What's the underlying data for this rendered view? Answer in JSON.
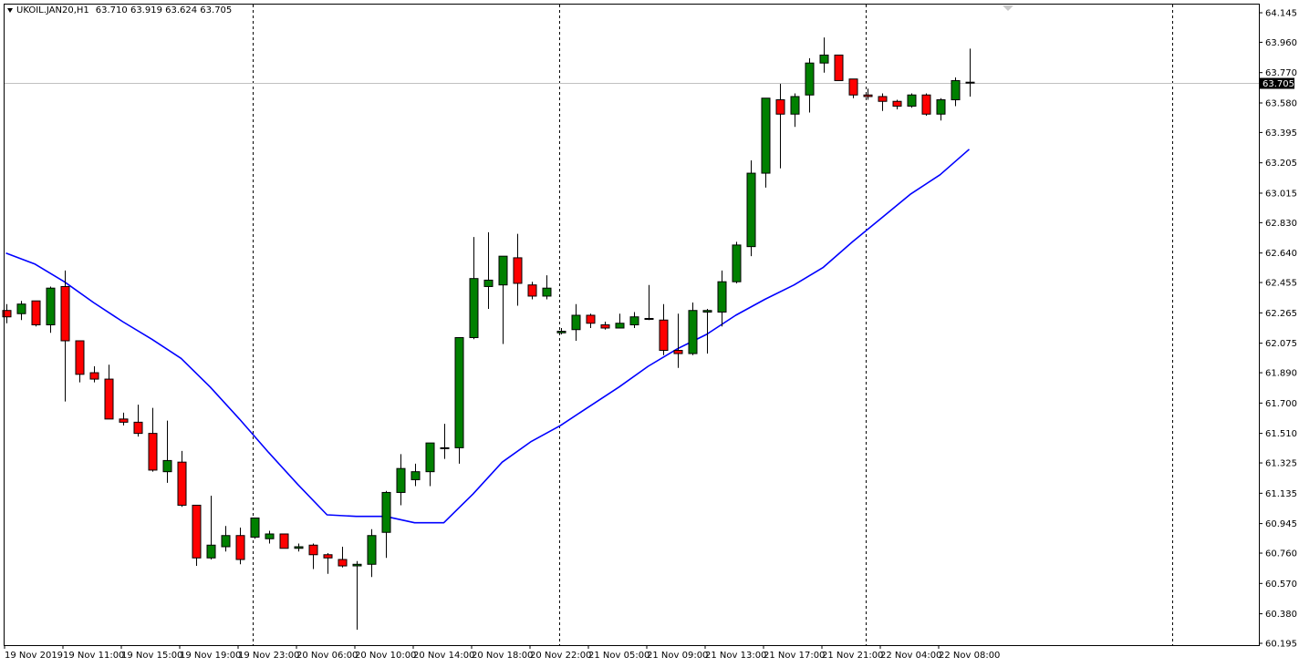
{
  "header": {
    "symbol": "UKOIL.JAN20,H1",
    "ohlc": "63.710 63.919 63.624 63.705"
  },
  "colors": {
    "bull": "#008000",
    "bear": "#ff0000",
    "ma_line": "#0000ff",
    "grid_separator": "#000000",
    "bid_line": "#c0c0c0",
    "price_tag_bg": "#000000",
    "price_tag_text": "#ffffff"
  },
  "price_axis": {
    "ticks": [
      "64.145",
      "63.960",
      "63.770",
      "63.580",
      "63.395",
      "63.205",
      "63.015",
      "62.830",
      "62.640",
      "62.455",
      "62.265",
      "62.075",
      "61.890",
      "61.700",
      "61.510",
      "61.325",
      "61.135",
      "60.945",
      "60.760",
      "60.570",
      "60.380",
      "60.195"
    ],
    "current_price": "63.705"
  },
  "time_axis": {
    "labels": [
      "19 Nov 2019",
      "19 Nov 11:00",
      "19 Nov 15:00",
      "19 Nov 19:00",
      "19 Nov 23:00",
      "20 Nov 06:00",
      "20 Nov 10:00",
      "20 Nov 14:00",
      "20 Nov 18:00",
      "20 Nov 22:00",
      "21 Nov 05:00",
      "21 Nov 09:00",
      "21 Nov 13:00",
      "21 Nov 17:00",
      "21 Nov 21:00",
      "22 Nov 04:00",
      "22 Nov 08:00"
    ]
  },
  "chart_data": {
    "type": "candlestick",
    "symbol": "UKOIL.JAN20",
    "timeframe": "H1",
    "ylim": [
      60.195,
      64.145
    ],
    "candles": [
      {
        "o": 62.28,
        "h": 62.32,
        "l": 62.2,
        "c": 62.24
      },
      {
        "o": 62.26,
        "h": 62.34,
        "l": 62.22,
        "c": 62.32
      },
      {
        "o": 62.34,
        "h": 62.34,
        "l": 62.18,
        "c": 62.19
      },
      {
        "o": 62.19,
        "h": 62.43,
        "l": 62.14,
        "c": 62.42
      },
      {
        "o": 62.43,
        "h": 62.53,
        "l": 61.71,
        "c": 62.09
      },
      {
        "o": 62.09,
        "h": 62.09,
        "l": 61.83,
        "c": 61.88
      },
      {
        "o": 61.89,
        "h": 61.93,
        "l": 61.83,
        "c": 61.85
      },
      {
        "o": 61.85,
        "h": 61.94,
        "l": 61.6,
        "c": 61.6
      },
      {
        "o": 61.6,
        "h": 61.64,
        "l": 61.56,
        "c": 61.58
      },
      {
        "o": 61.58,
        "h": 61.69,
        "l": 61.49,
        "c": 61.51
      },
      {
        "o": 61.51,
        "h": 61.67,
        "l": 61.27,
        "c": 61.28
      },
      {
        "o": 61.27,
        "h": 61.59,
        "l": 61.2,
        "c": 61.34
      },
      {
        "o": 61.33,
        "h": 61.4,
        "l": 61.05,
        "c": 61.06
      },
      {
        "o": 61.06,
        "h": 61.06,
        "l": 60.68,
        "c": 60.73
      },
      {
        "o": 60.73,
        "h": 61.12,
        "l": 60.72,
        "c": 60.81
      },
      {
        "o": 60.8,
        "h": 60.93,
        "l": 60.77,
        "c": 60.87
      },
      {
        "o": 60.87,
        "h": 60.92,
        "l": 60.69,
        "c": 60.72
      },
      {
        "o": 60.86,
        "h": 60.98,
        "l": 60.85,
        "c": 60.98
      },
      {
        "o": 60.85,
        "h": 60.9,
        "l": 60.82,
        "c": 60.88
      },
      {
        "o": 60.88,
        "h": 60.88,
        "l": 60.79,
        "c": 60.79
      },
      {
        "o": 60.79,
        "h": 60.82,
        "l": 60.77,
        "c": 60.8
      },
      {
        "o": 60.81,
        "h": 60.82,
        "l": 60.66,
        "c": 60.75
      },
      {
        "o": 60.75,
        "h": 60.76,
        "l": 60.63,
        "c": 60.73
      },
      {
        "o": 60.72,
        "h": 60.8,
        "l": 60.67,
        "c": 60.68
      },
      {
        "o": 60.68,
        "h": 60.71,
        "l": 60.28,
        "c": 60.69
      },
      {
        "o": 60.69,
        "h": 60.91,
        "l": 60.61,
        "c": 60.87
      },
      {
        "o": 60.89,
        "h": 61.15,
        "l": 60.73,
        "c": 61.14
      },
      {
        "o": 61.14,
        "h": 61.38,
        "l": 61.06,
        "c": 61.29
      },
      {
        "o": 61.22,
        "h": 61.32,
        "l": 61.18,
        "c": 61.27
      },
      {
        "o": 61.27,
        "h": 61.44,
        "l": 61.18,
        "c": 61.45
      },
      {
        "o": 61.42,
        "h": 61.57,
        "l": 61.35,
        "c": 61.42
      },
      {
        "o": 61.42,
        "h": 62.11,
        "l": 61.32,
        "c": 62.11
      },
      {
        "o": 62.11,
        "h": 62.74,
        "l": 62.1,
        "c": 62.48
      },
      {
        "o": 62.43,
        "h": 62.77,
        "l": 62.29,
        "c": 62.47
      },
      {
        "o": 62.44,
        "h": 62.62,
        "l": 62.07,
        "c": 62.62
      },
      {
        "o": 62.61,
        "h": 62.76,
        "l": 62.31,
        "c": 62.45
      },
      {
        "o": 62.44,
        "h": 62.46,
        "l": 62.35,
        "c": 62.37
      },
      {
        "o": 62.37,
        "h": 62.5,
        "l": 62.35,
        "c": 62.42
      },
      {
        "o": 62.14,
        "h": 62.17,
        "l": 62.13,
        "c": 62.15
      },
      {
        "o": 62.16,
        "h": 62.32,
        "l": 62.09,
        "c": 62.25
      },
      {
        "o": 62.25,
        "h": 62.26,
        "l": 62.17,
        "c": 62.2
      },
      {
        "o": 62.19,
        "h": 62.21,
        "l": 62.16,
        "c": 62.17
      },
      {
        "o": 62.17,
        "h": 62.26,
        "l": 62.17,
        "c": 62.2
      },
      {
        "o": 62.19,
        "h": 62.27,
        "l": 62.17,
        "c": 62.24
      },
      {
        "o": 62.23,
        "h": 62.44,
        "l": 62.22,
        "c": 62.23
      },
      {
        "o": 62.22,
        "h": 62.32,
        "l": 62.0,
        "c": 62.03
      },
      {
        "o": 62.03,
        "h": 62.26,
        "l": 61.92,
        "c": 62.01
      },
      {
        "o": 62.01,
        "h": 62.33,
        "l": 62.0,
        "c": 62.28
      },
      {
        "o": 62.27,
        "h": 62.29,
        "l": 62.01,
        "c": 62.28
      },
      {
        "o": 62.27,
        "h": 62.53,
        "l": 62.18,
        "c": 62.46
      },
      {
        "o": 62.46,
        "h": 62.71,
        "l": 62.45,
        "c": 62.69
      },
      {
        "o": 62.68,
        "h": 63.22,
        "l": 62.62,
        "c": 63.14
      },
      {
        "o": 63.14,
        "h": 63.6,
        "l": 63.05,
        "c": 63.61
      },
      {
        "o": 63.6,
        "h": 63.7,
        "l": 63.17,
        "c": 63.51
      },
      {
        "o": 63.51,
        "h": 63.64,
        "l": 63.43,
        "c": 63.62
      },
      {
        "o": 63.63,
        "h": 63.86,
        "l": 63.52,
        "c": 63.83
      },
      {
        "o": 63.83,
        "h": 63.99,
        "l": 63.77,
        "c": 63.88
      },
      {
        "o": 63.88,
        "h": 63.88,
        "l": 63.72,
        "c": 63.72
      },
      {
        "o": 63.73,
        "h": 63.73,
        "l": 63.61,
        "c": 63.63
      },
      {
        "o": 63.63,
        "h": 63.67,
        "l": 63.6,
        "c": 63.62
      },
      {
        "o": 63.62,
        "h": 63.64,
        "l": 63.53,
        "c": 63.59
      },
      {
        "o": 63.59,
        "h": 63.6,
        "l": 63.54,
        "c": 63.56
      },
      {
        "o": 63.56,
        "h": 63.64,
        "l": 63.55,
        "c": 63.63
      },
      {
        "o": 63.63,
        "h": 63.64,
        "l": 63.5,
        "c": 63.51
      },
      {
        "o": 63.51,
        "h": 63.61,
        "l": 63.47,
        "c": 63.6
      },
      {
        "o": 63.6,
        "h": 63.74,
        "l": 63.56,
        "c": 63.72
      },
      {
        "o": 63.71,
        "h": 63.92,
        "l": 63.62,
        "c": 63.71
      }
    ],
    "moving_average": [
      [
        0,
        62.64
      ],
      [
        2,
        62.57
      ],
      [
        4,
        62.46
      ],
      [
        6,
        62.33
      ],
      [
        8,
        62.21
      ],
      [
        10,
        62.1
      ],
      [
        12,
        61.98
      ],
      [
        14,
        61.8
      ],
      [
        16,
        61.6
      ],
      [
        18,
        61.39
      ],
      [
        20,
        61.19
      ],
      [
        22,
        61.0
      ],
      [
        24,
        60.99
      ],
      [
        26,
        60.99
      ],
      [
        28,
        60.95
      ],
      [
        30,
        60.95
      ],
      [
        32,
        61.13
      ],
      [
        34,
        61.33
      ],
      [
        36,
        61.46
      ],
      [
        38,
        61.56
      ],
      [
        40,
        61.68
      ],
      [
        42,
        61.8
      ],
      [
        44,
        61.93
      ],
      [
        46,
        62.04
      ],
      [
        48,
        62.13
      ],
      [
        50,
        62.25
      ],
      [
        52,
        62.35
      ],
      [
        54,
        62.44
      ],
      [
        56,
        62.55
      ],
      [
        58,
        62.71
      ],
      [
        60,
        62.86
      ],
      [
        62,
        63.01
      ],
      [
        64,
        63.13
      ],
      [
        66,
        63.29
      ]
    ]
  }
}
